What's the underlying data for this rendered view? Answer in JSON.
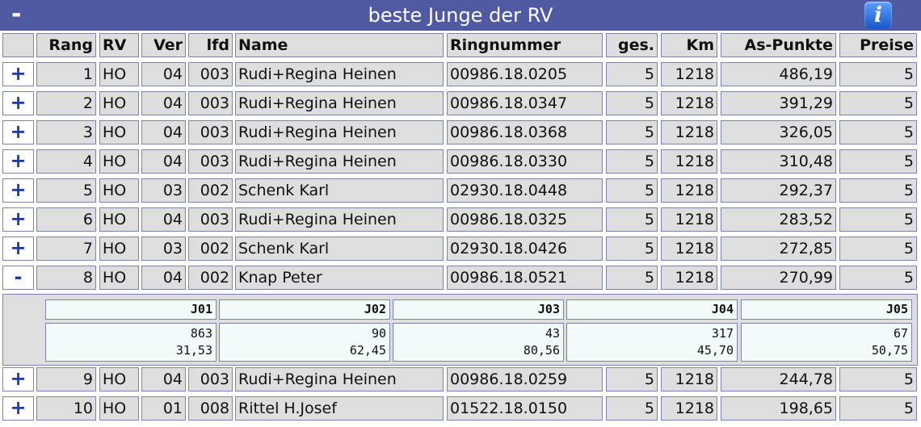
{
  "header": {
    "collapse_label": "-",
    "title": "beste Junge der RV",
    "info_label": "i"
  },
  "columns": [
    "",
    "Rang",
    "RV",
    "Ver",
    "lfd",
    "Name",
    "Ringnummer",
    "ges.",
    "Km",
    "As-Punkte",
    "Preise"
  ],
  "rows": [
    {
      "toggle": "+",
      "rang": "1",
      "rv": "HO",
      "ver": "04",
      "lfd": "003",
      "name": "Rudi+Regina Heinen",
      "ring": "00986.18.0205",
      "ges": "5",
      "km": "1218",
      "as": "486,19",
      "preise": "5"
    },
    {
      "toggle": "+",
      "rang": "2",
      "rv": "HO",
      "ver": "04",
      "lfd": "003",
      "name": "Rudi+Regina Heinen",
      "ring": "00986.18.0347",
      "ges": "5",
      "km": "1218",
      "as": "391,29",
      "preise": "5"
    },
    {
      "toggle": "+",
      "rang": "3",
      "rv": "HO",
      "ver": "04",
      "lfd": "003",
      "name": "Rudi+Regina Heinen",
      "ring": "00986.18.0368",
      "ges": "5",
      "km": "1218",
      "as": "326,05",
      "preise": "5"
    },
    {
      "toggle": "+",
      "rang": "4",
      "rv": "HO",
      "ver": "04",
      "lfd": "003",
      "name": "Rudi+Regina Heinen",
      "ring": "00986.18.0330",
      "ges": "5",
      "km": "1218",
      "as": "310,48",
      "preise": "5"
    },
    {
      "toggle": "+",
      "rang": "5",
      "rv": "HO",
      "ver": "03",
      "lfd": "002",
      "name": "Schenk Karl",
      "ring": "02930.18.0448",
      "ges": "5",
      "km": "1218",
      "as": "292,37",
      "preise": "5"
    },
    {
      "toggle": "+",
      "rang": "6",
      "rv": "HO",
      "ver": "04",
      "lfd": "003",
      "name": "Rudi+Regina Heinen",
      "ring": "00986.18.0325",
      "ges": "5",
      "km": "1218",
      "as": "283,52",
      "preise": "5"
    },
    {
      "toggle": "+",
      "rang": "7",
      "rv": "HO",
      "ver": "03",
      "lfd": "002",
      "name": "Schenk Karl",
      "ring": "02930.18.0426",
      "ges": "5",
      "km": "1218",
      "as": "272,85",
      "preise": "5"
    },
    {
      "toggle": "-",
      "rang": "8",
      "rv": "HO",
      "ver": "04",
      "lfd": "002",
      "name": "Knap Peter",
      "ring": "00986.18.0521",
      "ges": "5",
      "km": "1218",
      "as": "270,99",
      "preise": "5"
    },
    {
      "toggle": "+",
      "rang": "9",
      "rv": "HO",
      "ver": "04",
      "lfd": "003",
      "name": "Rudi+Regina Heinen",
      "ring": "00986.18.0259",
      "ges": "5",
      "km": "1218",
      "as": "244,78",
      "preise": "5"
    },
    {
      "toggle": "+",
      "rang": "10",
      "rv": "HO",
      "ver": "01",
      "lfd": "008",
      "name": "Rittel H.Josef",
      "ring": "01522.18.0150",
      "ges": "5",
      "km": "1218",
      "as": "198,65",
      "preise": "5"
    }
  ],
  "detail": {
    "flights": [
      {
        "label": "J01",
        "place": "863",
        "points": "31,53"
      },
      {
        "label": "J02",
        "place": "90",
        "points": "62,45"
      },
      {
        "label": "J03",
        "place": "43",
        "points": "80,56"
      },
      {
        "label": "J04",
        "place": "317",
        "points": "45,70"
      },
      {
        "label": "J05",
        "place": "67",
        "points": "50,75"
      }
    ]
  }
}
